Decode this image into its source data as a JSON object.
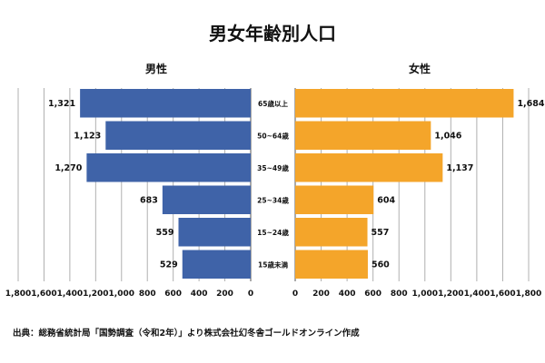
{
  "chart_data": {
    "type": "bar",
    "orientation": "horizontal-pyramid",
    "title": "男女年齢別人口",
    "categories": [
      "65歳以上",
      "50~64歳",
      "35~49歳",
      "25~34歳",
      "15~24歳",
      "15歳未満"
    ],
    "series": [
      {
        "name": "男性",
        "values": [
          1321,
          1123,
          1270,
          683,
          559,
          529
        ],
        "color": "#3f63a8"
      },
      {
        "name": "女性",
        "values": [
          1684,
          1046,
          1137,
          604,
          557,
          560
        ],
        "color": "#f4a52a"
      }
    ],
    "data_labels": {
      "男性": [
        "1,321",
        "1,123",
        "1,270",
        "683",
        "559",
        "529"
      ],
      "女性": [
        "1,684",
        "1,046",
        "1,137",
        "604",
        "557",
        "560"
      ]
    },
    "xlim": [
      0,
      1800
    ],
    "ticks": [
      "0",
      "200",
      "400",
      "600",
      "800",
      "1,000",
      "1,200",
      "1,400",
      "1,600",
      "1,800"
    ],
    "tick_values": [
      0,
      200,
      400,
      600,
      800,
      1000,
      1200,
      1400,
      1600,
      1800
    ],
    "grid": true,
    "gridline_color": "#b0b0b0"
  },
  "source": "出典：総務省統計局「国勢調査（令和2年）」より株式会社幻冬舎ゴールドオンライン作成"
}
